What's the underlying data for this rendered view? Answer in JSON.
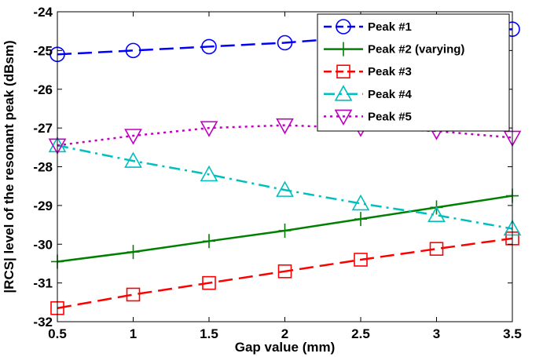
{
  "chart_data": {
    "type": "line",
    "title": "",
    "xlabel": "Gap value (mm)",
    "ylabel": "|RCS| level of the resonant peak (dBsm)",
    "xlim": [
      0.5,
      3.5
    ],
    "ylim": [
      -32,
      -24
    ],
    "x_ticks": [
      "0.5",
      "1",
      "1.5",
      "2",
      "2.5",
      "3",
      "3.5"
    ],
    "y_ticks": [
      "-24",
      "-25",
      "-26",
      "-27",
      "-28",
      "-29",
      "-30",
      "-31",
      "-32"
    ],
    "grid": false,
    "legend_position": "top-right",
    "x": [
      0.5,
      1,
      1.5,
      2,
      2.5,
      3,
      3.5
    ],
    "series": [
      {
        "name": "Peak #1",
        "color": "#0000ff",
        "line_style": "dashed",
        "marker": "circle",
        "values": [
          -25.1,
          -25.0,
          -24.9,
          -24.8,
          -24.65,
          -24.55,
          -24.45
        ]
      },
      {
        "name": "Peak #2 (varying)",
        "color": "#008000",
        "line_style": "solid",
        "marker": "plus",
        "values": [
          -30.45,
          -30.2,
          -29.92,
          -29.65,
          -29.35,
          -29.05,
          -28.75
        ]
      },
      {
        "name": "Peak #3",
        "color": "#ff0000",
        "line_style": "dashed",
        "marker": "square",
        "values": [
          -31.65,
          -31.3,
          -31.0,
          -30.7,
          -30.4,
          -30.12,
          -29.85
        ]
      },
      {
        "name": "Peak #4",
        "color": "#00bfbf",
        "line_style": "dash-dot",
        "marker": "triangle-up",
        "values": [
          -27.45,
          -27.85,
          -28.2,
          -28.6,
          -28.95,
          -29.25,
          -29.6
        ]
      },
      {
        "name": "Peak #5",
        "color": "#bf00bf",
        "line_style": "dotted",
        "marker": "triangle-down",
        "values": [
          -27.45,
          -27.2,
          -27.0,
          -26.93,
          -27.0,
          -27.08,
          -27.25
        ]
      }
    ]
  }
}
